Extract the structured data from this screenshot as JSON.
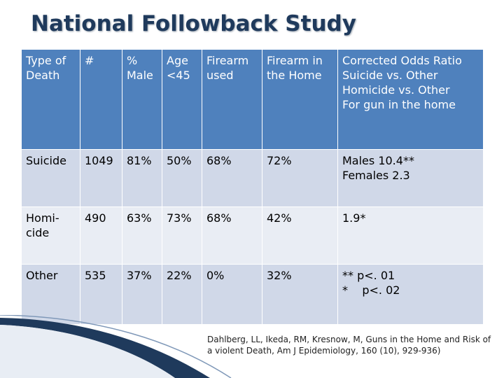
{
  "title": "National Followback Study",
  "table": {
    "header": [
      [
        "Type of",
        "Death"
      ],
      [
        "#"
      ],
      [
        "%",
        "Male"
      ],
      [
        "Age",
        "<45"
      ],
      [
        "Firearm",
        "used"
      ],
      [
        "Firearm in",
        "the Home"
      ],
      [
        "Corrected Odds Ratio",
        "Suicide vs. Other",
        "Homicide vs. Other",
        "For gun in the home"
      ]
    ],
    "rows": [
      {
        "type": [
          "Suicide"
        ],
        "count": "1049",
        "male": "81%",
        "age": "50%",
        "firearm_used": "68%",
        "firearm_home": "72%",
        "odds": [
          "Males 10.4**",
          "Females 2.3"
        ]
      },
      {
        "type": [
          "Homi-",
          "cide"
        ],
        "count": "490",
        "male": "63%",
        "age": "73%",
        "firearm_used": "68%",
        "firearm_home": "42%",
        "odds": [
          "1.9*"
        ]
      },
      {
        "type": [
          "Other"
        ],
        "count": "535",
        "male": "37%",
        "age": "22%",
        "firearm_used": "0%",
        "firearm_home": "32%",
        "odds": [
          "** p<. 01",
          "*    p<. 02"
        ]
      }
    ]
  },
  "citation": "Dahlberg, LL, Ikeda, RM, Kresnow, M, Guns in the Home and Risk of a violent Death, Am J Epidemiology, 160 (10), 929-936)",
  "colors": {
    "header_bg": "#4f81bd",
    "row_odd": "#d0d8e8",
    "row_even": "#e9edf4",
    "title": "#1f3a5c"
  }
}
